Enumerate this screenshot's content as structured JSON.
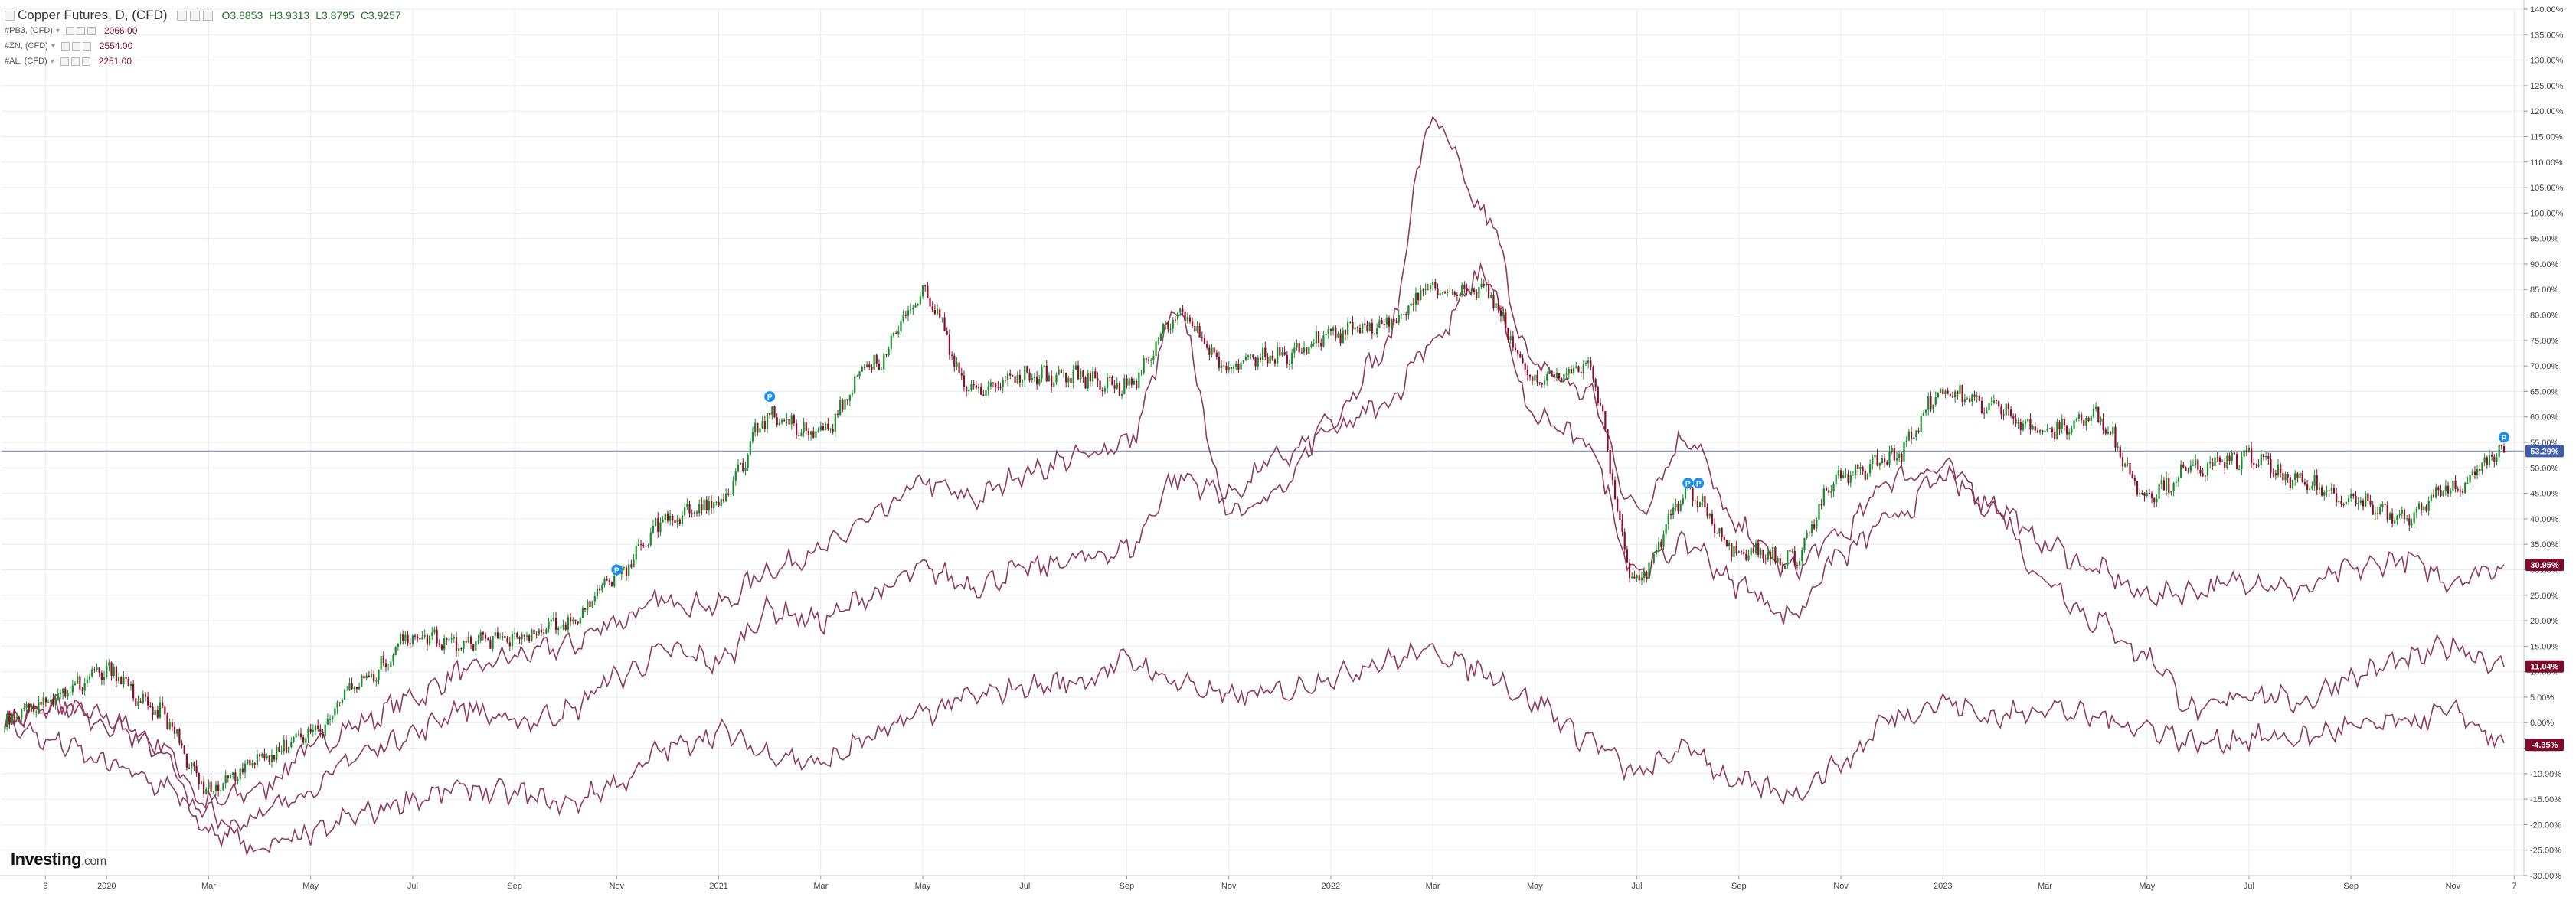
{
  "legend": {
    "main": {
      "title": "Copper Futures, D, (CFD)",
      "open": "O3.8853",
      "high": "H3.9313",
      "low": "L3.8795",
      "close": "C3.9257"
    },
    "compare": [
      {
        "name": "#PB3, (CFD)",
        "value": "2066.00"
      },
      {
        "name": "#ZN, (CFD)",
        "value": "2554.00"
      },
      {
        "name": "#AL, (CFD)",
        "value": "2251.00"
      }
    ]
  },
  "logo": {
    "brand": "Investing",
    "suffix": ".com"
  },
  "colors": {
    "up": "#1b8a2c",
    "down": "#8b0d28",
    "compare_line": "#8e3b5e",
    "badge": "#7d0a2a",
    "current_badge": "#3f5aa9",
    "hline": "#8b96c9",
    "grid": "#ebebeb",
    "event_marker": "#1e8fe6"
  },
  "chart_data": {
    "type": "line",
    "y_unit": "percent change",
    "ylim": [
      -30,
      140
    ],
    "y_ticks": [
      "140.00%",
      "135.00%",
      "130.00%",
      "125.00%",
      "120.00%",
      "115.00%",
      "110.00%",
      "105.00%",
      "100.00%",
      "95.00%",
      "90.00%",
      "85.00%",
      "80.00%",
      "75.00%",
      "70.00%",
      "65.00%",
      "60.00%",
      "55.00%",
      "50.00%",
      "45.00%",
      "40.00%",
      "35.00%",
      "30.00%",
      "25.00%",
      "20.00%",
      "15.00%",
      "10.00%",
      "5.00%",
      "0.00%",
      "-5.00%",
      "-10.00%",
      "-15.00%",
      "-20.00%",
      "-25.00%",
      "-30.00%"
    ],
    "x_ticks": [
      "6",
      "2020",
      "Mar",
      "May",
      "Jul",
      "Sep",
      "Nov",
      "2021",
      "Mar",
      "May",
      "Jul",
      "Sep",
      "Nov",
      "2022",
      "Mar",
      "May",
      "Jul",
      "Sep",
      "Nov",
      "2023",
      "Mar",
      "May",
      "Jul",
      "Sep",
      "Nov",
      "7"
    ],
    "current_label": "53.29%",
    "end_labels": [
      "30.95%",
      "11.04%",
      "-4.35%"
    ],
    "x_range": [
      "2019-11",
      "2023-12"
    ],
    "series": [
      {
        "name": "Copper Futures, D, (CFD)",
        "style": "candlestick",
        "points": [
          [
            "2019-11",
            0
          ],
          [
            "2019-12",
            5
          ],
          [
            "2020-01",
            10
          ],
          [
            "2020-02",
            2
          ],
          [
            "2020-03",
            -13
          ],
          [
            "2020-04",
            -7
          ],
          [
            "2020-05",
            -2
          ],
          [
            "2020-06",
            8
          ],
          [
            "2020-07",
            17
          ],
          [
            "2020-08",
            16
          ],
          [
            "2020-09",
            17
          ],
          [
            "2020-10",
            19
          ],
          [
            "2020-11",
            29
          ],
          [
            "2020-12",
            40
          ],
          [
            "2021-01",
            43
          ],
          [
            "2021-02",
            60
          ],
          [
            "2021-03",
            57
          ],
          [
            "2021-04",
            70
          ],
          [
            "2021-05",
            84
          ],
          [
            "2021-06",
            65
          ],
          [
            "2021-07",
            68
          ],
          [
            "2021-08",
            68
          ],
          [
            "2021-09",
            66
          ],
          [
            "2021-10",
            80
          ],
          [
            "2021-11",
            70
          ],
          [
            "2021-12",
            72
          ],
          [
            "2022-01",
            76
          ],
          [
            "2022-02",
            78
          ],
          [
            "2022-03",
            85
          ],
          [
            "2022-04",
            85
          ],
          [
            "2022-05",
            67
          ],
          [
            "2022-06",
            70
          ],
          [
            "2022-07",
            28
          ],
          [
            "2022-08",
            45
          ],
          [
            "2022-09",
            34
          ],
          [
            "2022-10",
            32
          ],
          [
            "2022-11",
            48
          ],
          [
            "2022-12",
            52
          ],
          [
            "2023-01",
            65
          ],
          [
            "2023-02",
            62
          ],
          [
            "2023-03",
            57
          ],
          [
            "2023-04",
            60
          ],
          [
            "2023-05",
            45
          ],
          [
            "2023-06",
            50
          ],
          [
            "2023-07",
            52
          ],
          [
            "2023-08",
            47
          ],
          [
            "2023-09",
            44
          ],
          [
            "2023-10",
            40
          ],
          [
            "2023-11",
            46
          ],
          [
            "2023-12",
            53
          ]
        ]
      },
      {
        "name": "#PB3, (CFD)",
        "points": [
          [
            "2019-11",
            0
          ],
          [
            "2019-12",
            3
          ],
          [
            "2020-01",
            1
          ],
          [
            "2020-02",
            -4
          ],
          [
            "2020-03",
            -16
          ],
          [
            "2020-04",
            -13
          ],
          [
            "2020-05",
            -5
          ],
          [
            "2020-06",
            0
          ],
          [
            "2020-07",
            5
          ],
          [
            "2020-08",
            10
          ],
          [
            "2020-09",
            13
          ],
          [
            "2020-10",
            15
          ],
          [
            "2020-11",
            20
          ],
          [
            "2020-12",
            24
          ],
          [
            "2021-01",
            23
          ],
          [
            "2021-02",
            30
          ],
          [
            "2021-03",
            34
          ],
          [
            "2021-04",
            40
          ],
          [
            "2021-05",
            47
          ],
          [
            "2021-06",
            44
          ],
          [
            "2021-07",
            49
          ],
          [
            "2021-08",
            52
          ],
          [
            "2021-09",
            55
          ],
          [
            "2021-10",
            80
          ],
          [
            "2021-11",
            42
          ],
          [
            "2021-12",
            45
          ],
          [
            "2022-01",
            60
          ],
          [
            "2022-02",
            72
          ],
          [
            "2022-03",
            118
          ],
          [
            "2022-04",
            100
          ],
          [
            "2022-05",
            70
          ],
          [
            "2022-06",
            65
          ],
          [
            "2022-07",
            42
          ],
          [
            "2022-08",
            56
          ],
          [
            "2022-09",
            38
          ],
          [
            "2022-10",
            30
          ],
          [
            "2022-11",
            37
          ],
          [
            "2022-12",
            48
          ],
          [
            "2023-01",
            50
          ],
          [
            "2023-02",
            43
          ],
          [
            "2023-03",
            35
          ],
          [
            "2023-04",
            30
          ],
          [
            "2023-05",
            25
          ],
          [
            "2023-06",
            26
          ],
          [
            "2023-07",
            28
          ],
          [
            "2023-08",
            26
          ],
          [
            "2023-09",
            30
          ],
          [
            "2023-10",
            32
          ],
          [
            "2023-11",
            28
          ],
          [
            "2023-12",
            31
          ]
        ]
      },
      {
        "name": "#ZN, (CFD)",
        "points": [
          [
            "2019-11",
            0
          ],
          [
            "2019-12",
            4
          ],
          [
            "2020-01",
            0
          ],
          [
            "2020-02",
            -5
          ],
          [
            "2020-03",
            -22
          ],
          [
            "2020-04",
            -18
          ],
          [
            "2020-05",
            -13
          ],
          [
            "2020-06",
            -6
          ],
          [
            "2020-07",
            -2
          ],
          [
            "2020-08",
            3
          ],
          [
            "2020-09",
            0
          ],
          [
            "2020-10",
            2
          ],
          [
            "2020-11",
            9
          ],
          [
            "2020-12",
            14
          ],
          [
            "2021-01",
            12
          ],
          [
            "2021-02",
            22
          ],
          [
            "2021-03",
            20
          ],
          [
            "2021-04",
            25
          ],
          [
            "2021-05",
            30
          ],
          [
            "2021-06",
            27
          ],
          [
            "2021-07",
            30
          ],
          [
            "2021-08",
            32
          ],
          [
            "2021-09",
            34
          ],
          [
            "2021-10",
            48
          ],
          [
            "2021-11",
            45
          ],
          [
            "2021-12",
            52
          ],
          [
            "2022-01",
            57
          ],
          [
            "2022-02",
            62
          ],
          [
            "2022-03",
            75
          ],
          [
            "2022-04",
            88
          ],
          [
            "2022-05",
            60
          ],
          [
            "2022-06",
            55
          ],
          [
            "2022-07",
            30
          ],
          [
            "2022-08",
            35
          ],
          [
            "2022-09",
            27
          ],
          [
            "2022-10",
            21
          ],
          [
            "2022-11",
            33
          ],
          [
            "2022-12",
            40
          ],
          [
            "2023-01",
            48
          ],
          [
            "2023-02",
            42
          ],
          [
            "2023-03",
            28
          ],
          [
            "2023-04",
            20
          ],
          [
            "2023-05",
            13
          ],
          [
            "2023-06",
            2
          ],
          [
            "2023-07",
            6
          ],
          [
            "2023-08",
            4
          ],
          [
            "2023-09",
            9
          ],
          [
            "2023-10",
            12
          ],
          [
            "2023-11",
            15
          ],
          [
            "2023-12",
            11
          ]
        ]
      },
      {
        "name": "#AL, (CFD)",
        "points": [
          [
            "2019-11",
            0
          ],
          [
            "2019-12",
            -4
          ],
          [
            "2020-01",
            -8
          ],
          [
            "2020-02",
            -12
          ],
          [
            "2020-03",
            -18
          ],
          [
            "2020-04",
            -25
          ],
          [
            "2020-05",
            -22
          ],
          [
            "2020-06",
            -18
          ],
          [
            "2020-07",
            -15
          ],
          [
            "2020-08",
            -13
          ],
          [
            "2020-09",
            -14
          ],
          [
            "2020-10",
            -16
          ],
          [
            "2020-11",
            -12
          ],
          [
            "2020-12",
            -5
          ],
          [
            "2021-01",
            -2
          ],
          [
            "2021-02",
            -6
          ],
          [
            "2021-03",
            -8
          ],
          [
            "2021-04",
            -3
          ],
          [
            "2021-05",
            2
          ],
          [
            "2021-06",
            5
          ],
          [
            "2021-07",
            7
          ],
          [
            "2021-08",
            8
          ],
          [
            "2021-09",
            12
          ],
          [
            "2021-10",
            8
          ],
          [
            "2021-11",
            5
          ],
          [
            "2021-12",
            6
          ],
          [
            "2022-01",
            9
          ],
          [
            "2022-02",
            12
          ],
          [
            "2022-03",
            14
          ],
          [
            "2022-04",
            10
          ],
          [
            "2022-05",
            4
          ],
          [
            "2022-06",
            -3
          ],
          [
            "2022-07",
            -10
          ],
          [
            "2022-08",
            -5
          ],
          [
            "2022-09",
            -12
          ],
          [
            "2022-10",
            -14
          ],
          [
            "2022-11",
            -8
          ],
          [
            "2022-12",
            1
          ],
          [
            "2023-01",
            4
          ],
          [
            "2023-02",
            1
          ],
          [
            "2023-03",
            3
          ],
          [
            "2023-04",
            1
          ],
          [
            "2023-05",
            -1
          ],
          [
            "2023-06",
            -4
          ],
          [
            "2023-07",
            -3
          ],
          [
            "2023-08",
            -3
          ],
          [
            "2023-09",
            -1
          ],
          [
            "2023-10",
            0
          ],
          [
            "2023-11",
            2
          ],
          [
            "2023-12",
            -4
          ]
        ]
      }
    ],
    "event_markers": [
      {
        "date": "2020-11",
        "value": 30
      },
      {
        "date": "2021-02",
        "value": 64
      },
      {
        "date": "2022-08",
        "value": 47
      },
      {
        "date": "2022-08",
        "value": 47
      },
      {
        "date": "2023-12",
        "value": 56
      }
    ]
  }
}
